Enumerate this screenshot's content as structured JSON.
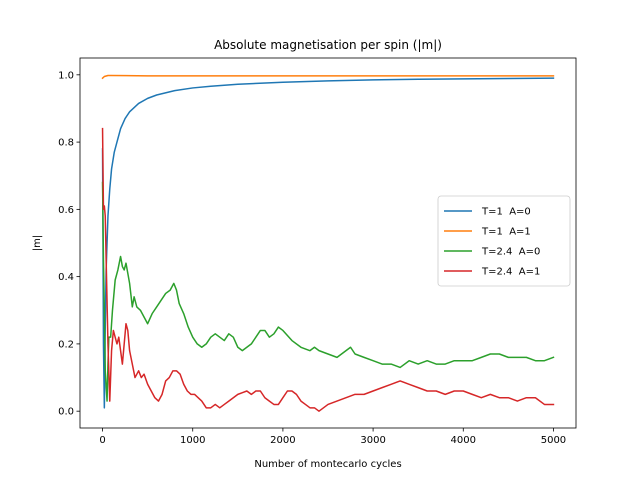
{
  "chart_data": {
    "type": "line",
    "title": "Absolute magnetisation per spin (|m|)",
    "xlabel": "Number of montecarlo cycles",
    "ylabel": "|m|",
    "xlim": [
      -250,
      5250
    ],
    "ylim": [
      -0.05,
      1.05
    ],
    "xticks": [
      0,
      1000,
      2000,
      3000,
      4000,
      5000
    ],
    "xtick_labels": [
      "0",
      "1000",
      "2000",
      "3000",
      "4000",
      "5000"
    ],
    "yticks": [
      0.0,
      0.2,
      0.4,
      0.6,
      0.8,
      1.0
    ],
    "ytick_labels": [
      "0.0",
      "0.2",
      "0.4",
      "0.6",
      "0.8",
      "1.0"
    ],
    "grid": false,
    "legend_position": "center-right",
    "series": [
      {
        "name": "T=1  A=0",
        "color": "#1f77b4",
        "x": [
          0,
          10,
          20,
          30,
          40,
          60,
          80,
          100,
          130,
          160,
          200,
          250,
          300,
          400,
          500,
          600,
          800,
          1000,
          1200,
          1500,
          2000,
          2500,
          3000,
          3500,
          4000,
          4500,
          5000
        ],
        "y": [
          0.78,
          0.2,
          0.01,
          0.25,
          0.42,
          0.58,
          0.66,
          0.72,
          0.77,
          0.8,
          0.84,
          0.87,
          0.89,
          0.915,
          0.93,
          0.94,
          0.953,
          0.961,
          0.966,
          0.972,
          0.978,
          0.982,
          0.985,
          0.987,
          0.988,
          0.989,
          0.99
        ]
      },
      {
        "name": "T=1  A=1",
        "color": "#ff7f0e",
        "x": [
          0,
          20,
          60,
          100,
          500,
          1000,
          2000,
          3000,
          4000,
          5000
        ],
        "y": [
          0.99,
          0.995,
          0.998,
          0.998,
          0.997,
          0.997,
          0.997,
          0.997,
          0.997,
          0.997
        ]
      },
      {
        "name": "T=2.4  A=0",
        "color": "#2ca02c",
        "x": [
          0,
          10,
          20,
          30,
          50,
          60,
          70,
          90,
          110,
          140,
          170,
          200,
          220,
          240,
          260,
          280,
          300,
          330,
          350,
          380,
          420,
          460,
          500,
          550,
          600,
          650,
          700,
          750,
          790,
          820,
          850,
          900,
          950,
          1000,
          1050,
          1100,
          1150,
          1200,
          1250,
          1300,
          1350,
          1400,
          1450,
          1500,
          1550,
          1600,
          1650,
          1700,
          1750,
          1800,
          1850,
          1900,
          1950,
          2000,
          2100,
          2200,
          2300,
          2350,
          2400,
          2500,
          2600,
          2700,
          2750,
          2800,
          2900,
          3000,
          3100,
          3200,
          3300,
          3400,
          3500,
          3600,
          3700,
          3800,
          3900,
          4000,
          4100,
          4200,
          4300,
          4400,
          4500,
          4600,
          4700,
          4800,
          4900,
          5000
        ],
        "y": [
          0.68,
          0.45,
          0.3,
          0.12,
          0.03,
          0.14,
          0.22,
          0.22,
          0.3,
          0.39,
          0.42,
          0.46,
          0.43,
          0.42,
          0.44,
          0.41,
          0.38,
          0.31,
          0.34,
          0.31,
          0.3,
          0.28,
          0.26,
          0.29,
          0.31,
          0.33,
          0.35,
          0.36,
          0.38,
          0.36,
          0.32,
          0.29,
          0.25,
          0.22,
          0.2,
          0.19,
          0.2,
          0.22,
          0.23,
          0.22,
          0.21,
          0.23,
          0.22,
          0.19,
          0.18,
          0.19,
          0.2,
          0.22,
          0.24,
          0.24,
          0.22,
          0.23,
          0.25,
          0.24,
          0.21,
          0.19,
          0.18,
          0.19,
          0.18,
          0.17,
          0.16,
          0.18,
          0.19,
          0.17,
          0.16,
          0.15,
          0.14,
          0.14,
          0.13,
          0.15,
          0.14,
          0.15,
          0.14,
          0.14,
          0.15,
          0.15,
          0.15,
          0.16,
          0.17,
          0.17,
          0.16,
          0.16,
          0.16,
          0.15,
          0.15,
          0.16
        ]
      },
      {
        "name": "T=2.4  A=1",
        "color": "#d62728",
        "x": [
          0,
          10,
          20,
          30,
          40,
          60,
          80,
          100,
          120,
          140,
          160,
          180,
          200,
          220,
          240,
          260,
          280,
          300,
          330,
          360,
          400,
          430,
          460,
          500,
          540,
          580,
          620,
          660,
          700,
          740,
          780,
          820,
          860,
          900,
          940,
          980,
          1020,
          1060,
          1100,
          1150,
          1200,
          1250,
          1300,
          1350,
          1400,
          1450,
          1500,
          1550,
          1600,
          1650,
          1700,
          1750,
          1800,
          1850,
          1900,
          1950,
          2000,
          2050,
          2100,
          2150,
          2200,
          2250,
          2300,
          2350,
          2400,
          2450,
          2500,
          2600,
          2700,
          2800,
          2900,
          3000,
          3100,
          3200,
          3300,
          3400,
          3500,
          3600,
          3700,
          3800,
          3900,
          4000,
          4100,
          4200,
          4300,
          4400,
          4500,
          4600,
          4700,
          4800,
          4900,
          5000
        ],
        "y": [
          0.84,
          0.6,
          0.61,
          0.58,
          0.45,
          0.2,
          0.03,
          0.18,
          0.24,
          0.22,
          0.2,
          0.22,
          0.18,
          0.14,
          0.2,
          0.26,
          0.24,
          0.18,
          0.14,
          0.1,
          0.12,
          0.1,
          0.11,
          0.08,
          0.06,
          0.04,
          0.03,
          0.05,
          0.09,
          0.1,
          0.12,
          0.12,
          0.11,
          0.08,
          0.06,
          0.05,
          0.05,
          0.04,
          0.03,
          0.01,
          0.01,
          0.02,
          0.01,
          0.02,
          0.03,
          0.04,
          0.05,
          0.055,
          0.06,
          0.05,
          0.06,
          0.06,
          0.04,
          0.03,
          0.02,
          0.02,
          0.04,
          0.06,
          0.06,
          0.05,
          0.03,
          0.02,
          0.01,
          0.01,
          0.0,
          0.01,
          0.02,
          0.03,
          0.04,
          0.05,
          0.05,
          0.06,
          0.07,
          0.08,
          0.09,
          0.08,
          0.07,
          0.06,
          0.06,
          0.05,
          0.06,
          0.06,
          0.05,
          0.04,
          0.05,
          0.04,
          0.04,
          0.03,
          0.04,
          0.04,
          0.02,
          0.02
        ]
      }
    ]
  }
}
